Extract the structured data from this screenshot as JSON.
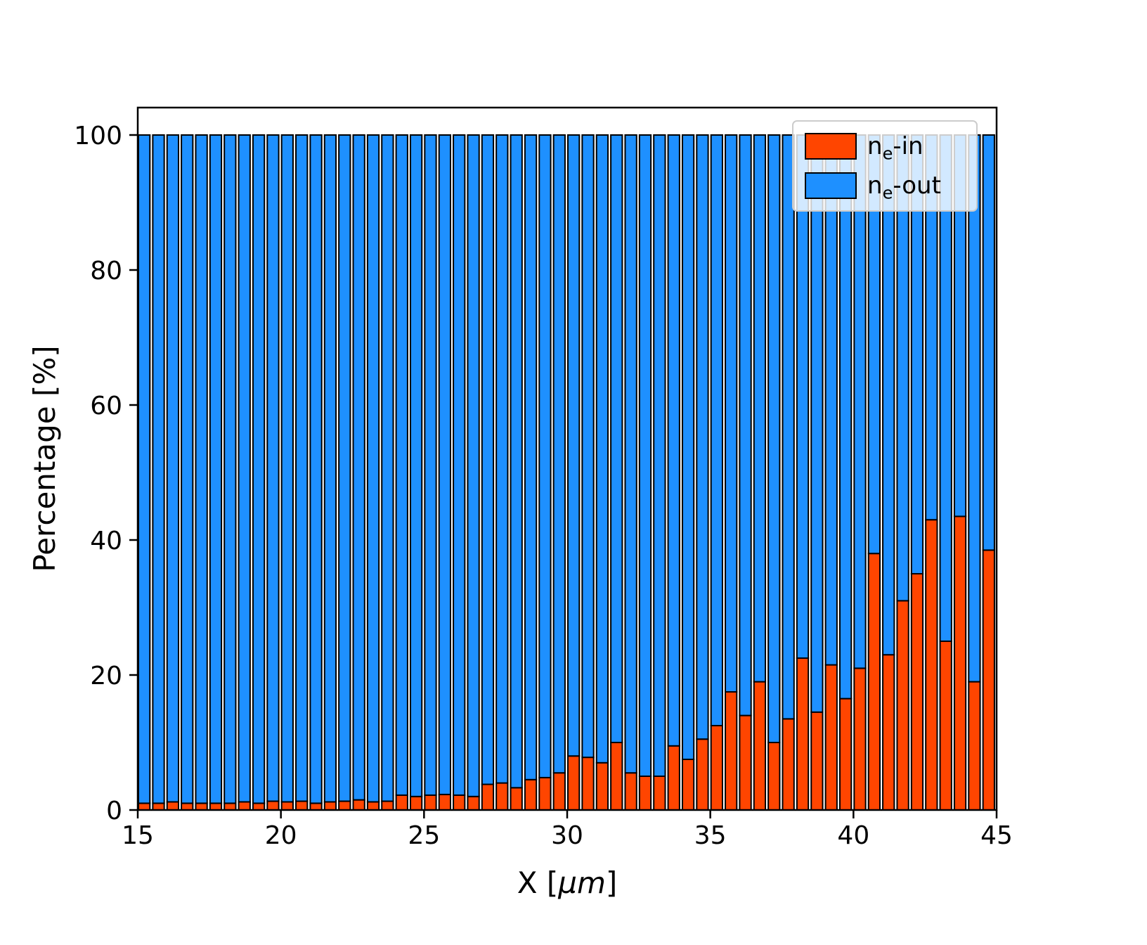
{
  "chart_data": {
    "type": "bar",
    "stacked": true,
    "title": "",
    "xlabel": "X [μm]",
    "ylabel": "Percentage [%]",
    "xlim": [
      15,
      45
    ],
    "ylim": [
      0,
      104
    ],
    "xticks": [
      15,
      20,
      25,
      30,
      35,
      40,
      45
    ],
    "yticks": [
      0,
      20,
      40,
      60,
      80,
      100
    ],
    "grid": false,
    "legend_position": "upper right",
    "bar_width_units": 0.4,
    "bin_width_units": 0.5,
    "edge_color": "#000000",
    "categories": [
      15.0,
      15.5,
      16.0,
      16.5,
      17.0,
      17.5,
      18.0,
      18.5,
      19.0,
      19.5,
      20.0,
      20.5,
      21.0,
      21.5,
      22.0,
      22.5,
      23.0,
      23.5,
      24.0,
      24.5,
      25.0,
      25.5,
      26.0,
      26.5,
      27.0,
      27.5,
      28.0,
      28.5,
      29.0,
      29.5,
      30.0,
      30.5,
      31.0,
      31.5,
      32.0,
      32.5,
      33.0,
      33.5,
      34.0,
      34.5,
      35.0,
      35.5,
      36.0,
      36.5,
      37.0,
      37.5,
      38.0,
      38.5,
      39.0,
      39.5,
      40.0,
      40.5,
      41.0,
      41.5,
      42.0,
      42.5,
      43.0,
      43.5,
      44.0,
      44.5
    ],
    "series": [
      {
        "name": "n_e-in",
        "color": "#ff4500",
        "values": [
          1.0,
          1.0,
          1.2,
          1.0,
          1.0,
          1.0,
          1.0,
          1.2,
          1.0,
          1.3,
          1.2,
          1.3,
          1.0,
          1.2,
          1.3,
          1.5,
          1.2,
          1.3,
          2.2,
          2.0,
          2.2,
          2.3,
          2.2,
          2.0,
          3.8,
          4.0,
          3.3,
          4.5,
          4.8,
          5.5,
          8.0,
          7.8,
          7.0,
          10.0,
          5.5,
          5.0,
          5.0,
          9.5,
          7.5,
          10.5,
          12.5,
          17.5,
          14.0,
          19.0,
          10.0,
          13.5,
          22.5,
          14.5,
          21.5,
          16.5,
          21.0,
          38.0,
          23.0,
          31.0,
          35.0,
          43.0,
          25.0,
          43.5,
          19.0,
          38.5
        ]
      },
      {
        "name": "n_e-out",
        "color": "#1e90ff",
        "values": [
          99.0,
          99.0,
          98.8,
          99.0,
          99.0,
          99.0,
          99.0,
          98.8,
          99.0,
          98.7,
          98.8,
          98.7,
          99.0,
          98.8,
          98.7,
          98.5,
          98.8,
          98.7,
          97.8,
          98.0,
          97.8,
          97.7,
          97.8,
          98.0,
          96.2,
          96.0,
          96.7,
          95.5,
          95.2,
          94.5,
          92.0,
          92.2,
          93.0,
          90.0,
          94.5,
          95.0,
          95.0,
          90.5,
          92.5,
          89.5,
          87.5,
          82.5,
          86.0,
          81.0,
          90.0,
          86.5,
          77.5,
          85.5,
          78.5,
          83.5,
          79.0,
          62.0,
          77.0,
          69.0,
          65.0,
          57.0,
          75.0,
          56.5,
          81.0,
          61.5
        ]
      }
    ],
    "legend": {
      "entries": [
        {
          "label": "n_e-in",
          "color": "#ff4500"
        },
        {
          "label": "n_e-out",
          "color": "#1e90ff"
        }
      ]
    }
  }
}
